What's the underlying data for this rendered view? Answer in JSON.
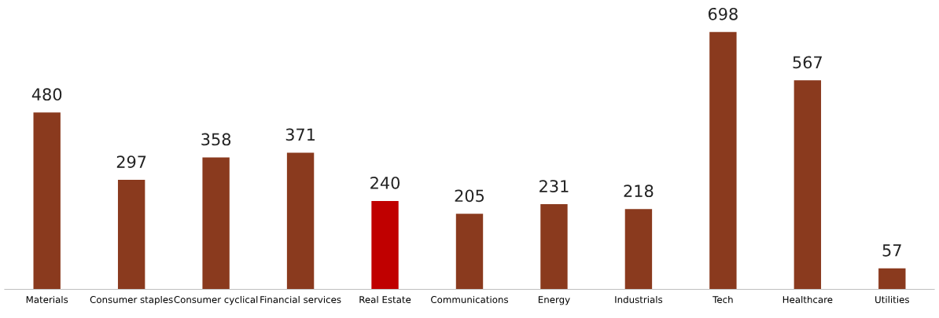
{
  "chart_data": {
    "type": "bar",
    "categories": [
      "Materials",
      "Consumer staples",
      "Consumer cyclical",
      "Financial services",
      "Real Estate",
      "Communications",
      "Energy",
      "Industrials",
      "Tech",
      "Healthcare",
      "Utilities"
    ],
    "values": [
      480,
      297,
      358,
      371,
      240,
      205,
      231,
      218,
      698,
      567,
      57
    ],
    "colors": [
      "#8a3a1e",
      "#8a3a1e",
      "#8a3a1e",
      "#8a3a1e",
      "#c00000",
      "#8a3a1e",
      "#8a3a1e",
      "#8a3a1e",
      "#8a3a1e",
      "#8a3a1e",
      "#8a3a1e"
    ],
    "data_labels": true,
    "grid": false,
    "legend": false,
    "tick_labels": "x"
  }
}
